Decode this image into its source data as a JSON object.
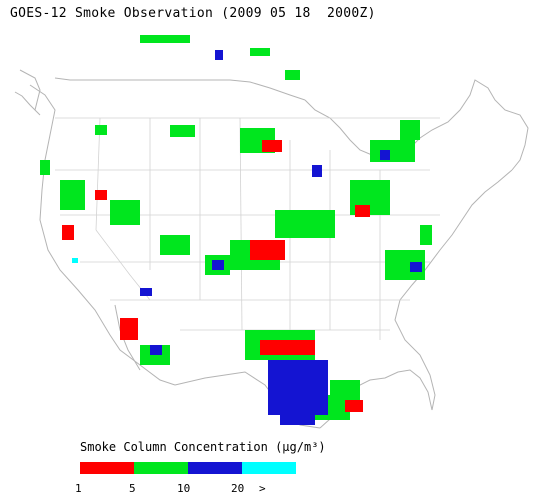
{
  "title": "GOES-12 Smoke Observation (2009 05 18  2000Z)",
  "legend": {
    "title": "Smoke Column Concentration (μg/m³)",
    "colors": [
      "#ff0000",
      "#00e61e",
      "#1414d2",
      "#00ffff"
    ],
    "ticks": [
      "1",
      "5",
      "10",
      "20",
      ">"
    ]
  }
}
